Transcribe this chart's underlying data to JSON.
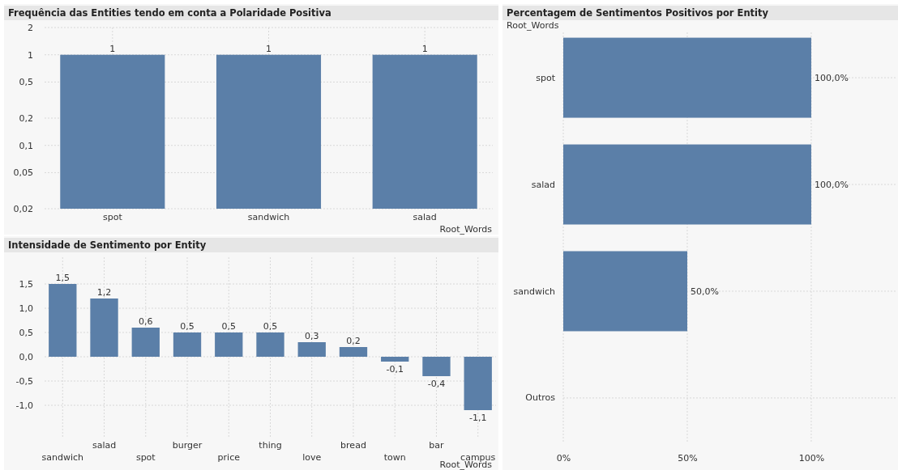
{
  "chart_data": [
    {
      "type": "bar",
      "title": "Frequência das Entities tendo em conta a Polaridade Positiva",
      "xlabel": "Root_Words",
      "categories": [
        "spot",
        "sandwich",
        "salad"
      ],
      "values": [
        1,
        1,
        1
      ],
      "color": "#5b7fa8",
      "log": true,
      "ylim": [
        0.02,
        2
      ],
      "yticks": [
        {
          "value": 0.02,
          "label": "0,02"
        },
        {
          "value": 0.05,
          "label": "0,05"
        },
        {
          "value": 0.1,
          "label": "0,1"
        },
        {
          "value": 0.2,
          "label": "0,2"
        },
        {
          "value": 0.5,
          "label": "0,5"
        },
        1,
        2
      ],
      "grid": true,
      "data_labels": true
    },
    {
      "type": "bar",
      "title": "Intensidade de Sentimento por Entity",
      "xlabel": "Root_Words",
      "categories": [
        "sandwich",
        "salad",
        "spot",
        "burger",
        "price",
        "thing",
        "love",
        "bread",
        "town",
        "bar",
        "campus"
      ],
      "values": [
        1.5,
        1.2,
        0.6,
        0.5,
        0.5,
        0.5,
        0.3,
        0.2,
        -0.1,
        -0.4,
        -1.1
      ],
      "color": "#5b7fa8",
      "ylim": [
        -1.65,
        2.05
      ],
      "yticks": [
        {
          "value": -1,
          "label": "-1,0"
        },
        {
          "value": -0.5,
          "label": "-0,5"
        },
        {
          "value": 0,
          "label": "0,0"
        },
        {
          "value": 0.5,
          "label": "0,5"
        },
        {
          "value": 1,
          "label": "1,0"
        },
        {
          "value": 1.5,
          "label": "1,5"
        }
      ],
      "grid": true,
      "value_labels": [
        "1,5",
        "1,2",
        "0,6",
        "0,5",
        "0,5",
        "0,5",
        "0,3",
        "0,2",
        "-0,1",
        "-0,4",
        "-1,1"
      ]
    },
    {
      "type": "bar",
      "orientation": "horizontal",
      "title": "Percentagem de Sentimentos Positivos por Entity",
      "ylabel": "Root_Words",
      "categories": [
        "spot",
        "salad",
        "sandwich",
        "Outros"
      ],
      "values": [
        100,
        100,
        50,
        null
      ],
      "color": "#5b7fa8",
      "xlim": [
        0,
        134
      ],
      "xticks": [
        {
          "value": 0,
          "label": "0%"
        },
        {
          "value": 50,
          "label": "50%"
        },
        {
          "value": 100,
          "label": "100%"
        }
      ],
      "grid": true,
      "value_labels": [
        "100,0%",
        "100,0%",
        "50,0%",
        null
      ]
    }
  ]
}
